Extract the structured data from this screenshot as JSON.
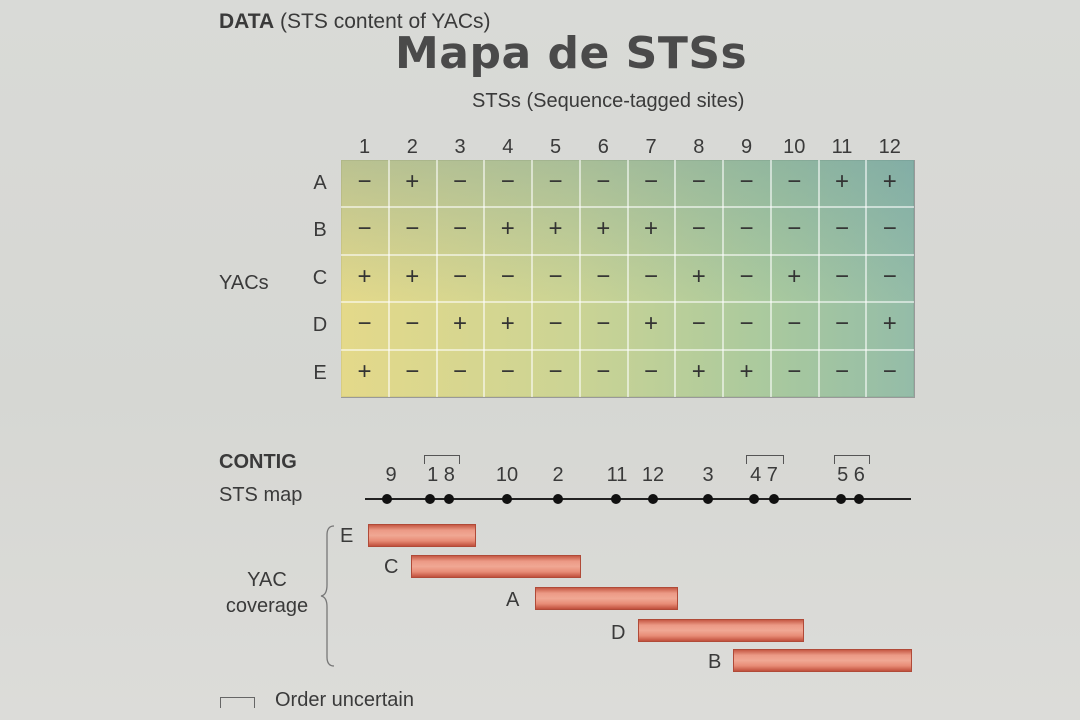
{
  "header": {
    "data_bold": "DATA",
    "data_rest": " (STS content of YACs)",
    "title": "Mapa de STSs",
    "sts_header": "STSs (Sequence-tagged sites)"
  },
  "grid": {
    "columns": [
      "1",
      "2",
      "3",
      "4",
      "5",
      "6",
      "7",
      "8",
      "9",
      "10",
      "11",
      "12"
    ],
    "rows_label": "YACs",
    "rows": [
      {
        "label": "A",
        "cells": [
          "−",
          "+",
          "−",
          "−",
          "−",
          "−",
          "−",
          "−",
          "−",
          "−",
          "+",
          "+"
        ]
      },
      {
        "label": "B",
        "cells": [
          "−",
          "−",
          "−",
          "+",
          "+",
          "+",
          "+",
          "−",
          "−",
          "−",
          "−",
          "−"
        ]
      },
      {
        "label": "C",
        "cells": [
          "+",
          "+",
          "−",
          "−",
          "−",
          "−",
          "−",
          "+",
          "−",
          "+",
          "−",
          "−"
        ]
      },
      {
        "label": "D",
        "cells": [
          "−",
          "−",
          "+",
          "+",
          "−",
          "−",
          "+",
          "−",
          "−",
          "−",
          "−",
          "+"
        ]
      },
      {
        "label": "E",
        "cells": [
          "+",
          "−",
          "−",
          "−",
          "−",
          "−",
          "−",
          "+",
          "+",
          "−",
          "−",
          "−"
        ]
      }
    ]
  },
  "contig": {
    "heading": "CONTIG",
    "sts_map_label": "STS map",
    "map_labels": [
      "9",
      "1 8",
      "10",
      "2",
      "11",
      "12",
      "3",
      "4 7",
      "5 6"
    ],
    "coverage_line1": "YAC",
    "coverage_line2": "coverage",
    "yacs": [
      {
        "label": "E"
      },
      {
        "label": "C"
      },
      {
        "label": "A"
      },
      {
        "label": "D"
      },
      {
        "label": "B"
      }
    ]
  },
  "legend": {
    "text": "Order uncertain"
  }
}
